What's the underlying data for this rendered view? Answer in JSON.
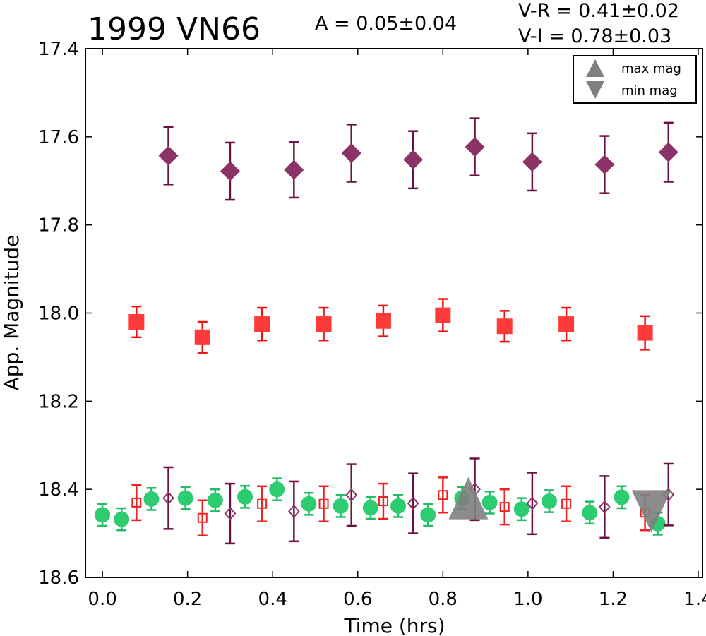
{
  "chart_data": {
    "type": "scatter",
    "title": "1999 VN66",
    "annotations": {
      "amplitude": "A  = 0.05±0.04",
      "vr": "V-R = 0.41±0.02",
      "vi": "V-I  = 0.78±0.03"
    },
    "xlabel": "Time (hrs)",
    "ylabel": "App. Magnitude",
    "xlim": [
      -0.04,
      1.41
    ],
    "ylim": [
      18.6,
      17.4
    ],
    "y_inverted": true,
    "grid": false,
    "x_ticks": [
      "0.0",
      "0.2",
      "0.4",
      "0.6",
      "0.8",
      "1.0",
      "1.2",
      "1.4"
    ],
    "y_ticks": [
      "17.4",
      "17.6",
      "17.8",
      "18.0",
      "18.2",
      "18.4",
      "18.6"
    ],
    "legend": {
      "placement": "top-right",
      "entries": [
        {
          "label": "max mag",
          "marker": "triangle-up",
          "color": "#808080"
        },
        {
          "label": "min mag",
          "marker": "triangle-down",
          "color": "#808080"
        }
      ]
    },
    "series": [
      {
        "marker": "diamond",
        "filled": true,
        "color": "#8b3366",
        "err_color": "#6b1040",
        "points": [
          [
            0.155,
            17.643,
            0.065
          ],
          [
            0.3,
            17.678,
            0.065
          ],
          [
            0.45,
            17.675,
            0.063
          ],
          [
            0.585,
            17.637,
            0.065
          ],
          [
            0.73,
            17.652,
            0.065
          ],
          [
            0.875,
            17.623,
            0.065
          ],
          [
            1.01,
            17.657,
            0.065
          ],
          [
            1.18,
            17.663,
            0.065
          ],
          [
            1.33,
            17.635,
            0.067
          ]
        ]
      },
      {
        "marker": "square",
        "filled": true,
        "color": "#ff3a3a",
        "err_color": "#ee1111",
        "points": [
          [
            0.08,
            18.02,
            0.035
          ],
          [
            0.235,
            18.055,
            0.035
          ],
          [
            0.375,
            18.025,
            0.037
          ],
          [
            0.52,
            18.025,
            0.037
          ],
          [
            0.66,
            18.018,
            0.035
          ],
          [
            0.8,
            18.005,
            0.037
          ],
          [
            0.945,
            18.03,
            0.035
          ],
          [
            1.09,
            18.025,
            0.037
          ],
          [
            1.275,
            18.045,
            0.038
          ]
        ]
      },
      {
        "marker": "circle",
        "filled": true,
        "color": "#2ecc71",
        "err_color": "#22bb66",
        "points": [
          [
            0.0,
            18.458,
            0.025
          ],
          [
            0.045,
            18.468,
            0.025
          ],
          [
            0.115,
            18.422,
            0.025
          ],
          [
            0.195,
            18.42,
            0.025
          ],
          [
            0.265,
            18.425,
            0.025
          ],
          [
            0.335,
            18.417,
            0.025
          ],
          [
            0.41,
            18.4,
            0.025
          ],
          [
            0.485,
            18.433,
            0.025
          ],
          [
            0.56,
            18.438,
            0.025
          ],
          [
            0.63,
            18.442,
            0.025
          ],
          [
            0.695,
            18.438,
            0.025
          ],
          [
            0.765,
            18.458,
            0.025
          ],
          [
            0.845,
            18.42,
            0.025
          ],
          [
            0.91,
            18.43,
            0.025
          ],
          [
            0.985,
            18.445,
            0.025
          ],
          [
            1.05,
            18.427,
            0.025
          ],
          [
            1.145,
            18.453,
            0.025
          ],
          [
            1.22,
            18.418,
            0.025
          ],
          [
            1.305,
            18.478,
            0.025
          ]
        ]
      },
      {
        "marker": "square",
        "filled": false,
        "color": "#ee2222",
        "err_color": "#ee2222",
        "points": [
          [
            0.08,
            18.43,
            0.04
          ],
          [
            0.235,
            18.465,
            0.04
          ],
          [
            0.375,
            18.433,
            0.04
          ],
          [
            0.52,
            18.433,
            0.04
          ],
          [
            0.66,
            18.427,
            0.04
          ],
          [
            0.8,
            18.413,
            0.04
          ],
          [
            0.945,
            18.44,
            0.04
          ],
          [
            1.09,
            18.433,
            0.04
          ],
          [
            1.275,
            18.453,
            0.04
          ]
        ]
      },
      {
        "marker": "diamond",
        "filled": false,
        "color": "#8b3366",
        "err_color": "#6b1040",
        "points": [
          [
            0.155,
            18.42,
            0.07
          ],
          [
            0.3,
            18.455,
            0.068
          ],
          [
            0.45,
            18.45,
            0.068
          ],
          [
            0.585,
            18.413,
            0.07
          ],
          [
            0.73,
            18.432,
            0.068
          ],
          [
            0.875,
            18.4,
            0.07
          ],
          [
            1.01,
            18.432,
            0.07
          ],
          [
            1.18,
            18.44,
            0.07
          ],
          [
            1.33,
            18.412,
            0.07
          ]
        ]
      }
    ],
    "extrema_markers": [
      {
        "type": "max",
        "marker": "triangle-up",
        "color": "#808080",
        "x": 0.86,
        "y": 18.42
      },
      {
        "type": "min",
        "marker": "triangle-down",
        "color": "#808080",
        "x": 1.29,
        "y": 18.45
      }
    ]
  }
}
